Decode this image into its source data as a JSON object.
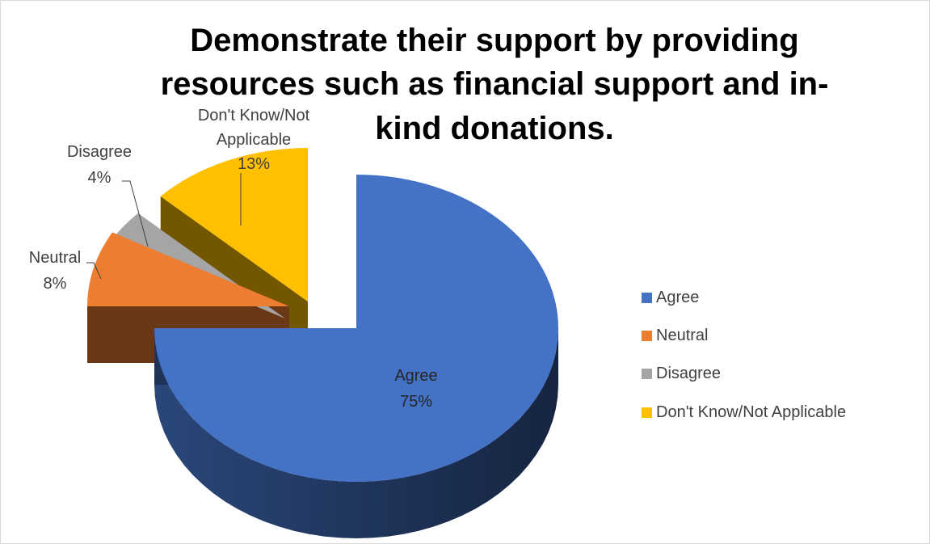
{
  "chart_data": {
    "type": "pie",
    "title_lines": [
      "Demonstrate their support by providing",
      "resources such as financial support and in-",
      "kind donations."
    ],
    "categories": [
      "Agree",
      "Neutral",
      "Disagree",
      "Don't Know/Not Applicable"
    ],
    "values": [
      75,
      8,
      4,
      13
    ],
    "slices": [
      {
        "name": "Agree",
        "value": 75,
        "percent_label": "75%",
        "label_lines": [
          "Agree",
          "75%"
        ],
        "color": "#4472C4",
        "exploded": false
      },
      {
        "name": "Neutral",
        "value": 8,
        "percent_label": "8%",
        "label_lines": [
          "Neutral",
          "8%"
        ],
        "color": "#ED7D31",
        "exploded": true
      },
      {
        "name": "Disagree",
        "value": 4,
        "percent_label": "4%",
        "label_lines": [
          "Disagree",
          "4%"
        ],
        "color": "#A5A5A5",
        "exploded": true
      },
      {
        "name": "Don't Know/Not Applicable",
        "value": 13,
        "percent_label": "13%",
        "label_lines": [
          "Don't Know/Not",
          "Applicable",
          "13%"
        ],
        "color": "#FFC000",
        "exploded": true
      }
    ],
    "style": "3d-pie",
    "legend": {
      "position": "right",
      "entries": [
        "Agree",
        "Neutral",
        "Disagree",
        "Don't Know/Not Applicable"
      ]
    }
  }
}
